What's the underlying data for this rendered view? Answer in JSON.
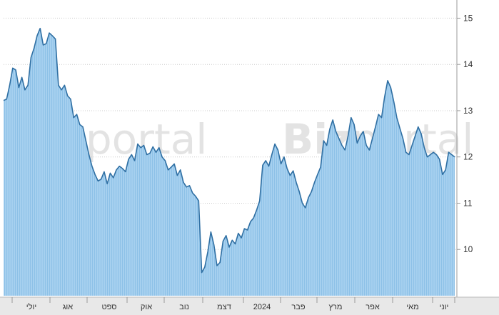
{
  "chart_data": {
    "type": "area",
    "title": "",
    "xlabel": "",
    "ylabel": "",
    "ylim": [
      9.0,
      15.3
    ],
    "yticks": [
      10,
      11,
      12,
      13,
      14,
      15
    ],
    "y_axis_side": "right",
    "grid": "horizontal-dotted",
    "x_tick_labels": [
      "יולי",
      "אוג",
      "ספט",
      "אוק",
      "נוב",
      "דצמ",
      "2024",
      "פבר",
      "מרץ",
      "אפר",
      "מאי",
      "יוני"
    ],
    "series": [
      {
        "values": [
          13.22,
          13.25,
          13.55,
          13.92,
          13.88,
          13.5,
          13.72,
          13.45,
          13.55,
          14.15,
          14.35,
          14.62,
          14.78,
          14.42,
          14.45,
          14.68,
          14.62,
          14.55,
          13.55,
          13.45,
          13.55,
          13.32,
          13.25,
          12.85,
          12.92,
          12.7,
          12.65,
          12.35,
          12.05,
          11.8,
          11.62,
          11.48,
          11.52,
          11.68,
          11.42,
          11.65,
          11.55,
          11.72,
          11.8,
          11.75,
          11.68,
          11.95,
          12.05,
          11.92,
          12.28,
          12.2,
          12.25,
          12.05,
          12.08,
          12.22,
          12.1,
          12.2,
          12.0,
          11.92,
          11.72,
          11.78,
          11.85,
          11.6,
          11.72,
          11.45,
          11.35,
          11.38,
          11.22,
          11.15,
          11.05,
          9.5,
          9.62,
          9.95,
          10.38,
          10.1,
          9.65,
          9.72,
          10.18,
          10.3,
          10.05,
          10.2,
          10.12,
          10.35,
          10.25,
          10.45,
          10.42,
          10.6,
          10.68,
          10.85,
          11.05,
          11.82,
          11.92,
          11.8,
          12.05,
          12.28,
          12.15,
          11.85,
          12.0,
          11.75,
          11.6,
          11.7,
          11.45,
          11.25,
          11.0,
          10.9,
          11.12,
          11.25,
          11.45,
          11.62,
          11.78,
          12.35,
          12.25,
          12.6,
          12.8,
          12.55,
          12.4,
          12.25,
          12.15,
          12.45,
          12.85,
          12.7,
          12.3,
          12.45,
          12.55,
          12.25,
          12.15,
          12.4,
          12.65,
          12.92,
          12.85,
          13.3,
          13.65,
          13.5,
          13.2,
          12.85,
          12.62,
          12.4,
          12.1,
          12.05,
          12.25,
          12.45,
          12.65,
          12.5,
          12.2,
          12.0,
          12.05,
          12.1,
          12.05,
          11.95,
          11.62,
          11.72,
          12.1,
          12.05,
          12.0
        ]
      }
    ]
  },
  "watermark": {
    "brand_bold": "Biz",
    "brand_light": "portal"
  },
  "colors": {
    "line": "#2f6fa3",
    "fill": "#a6d0ef",
    "fill_stripe": "#8dc1e7",
    "grid": "#cccccc",
    "axis_bar": "#e8e8e8"
  }
}
